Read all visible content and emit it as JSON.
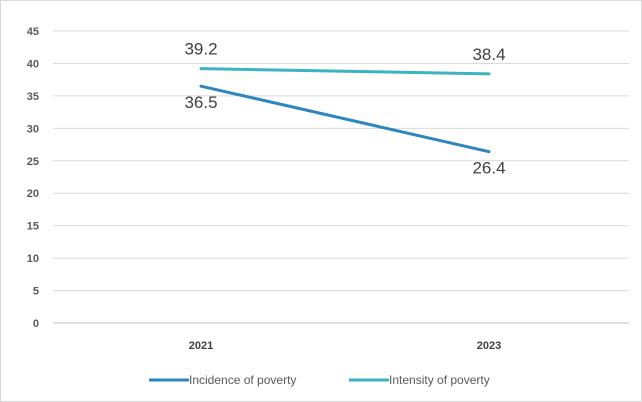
{
  "chart_data": {
    "type": "line",
    "categories": [
      "2021",
      "2023"
    ],
    "series": [
      {
        "name": "Incidence of poverty",
        "values": [
          36.5,
          26.4
        ],
        "color": "#2e86c1"
      },
      {
        "name": "Intensity of poverty",
        "values": [
          39.2,
          38.4
        ],
        "color": "#3bb3c3"
      }
    ],
    "yticks": [
      0,
      5,
      10,
      15,
      20,
      25,
      30,
      35,
      40,
      45
    ],
    "ylim": [
      0,
      45
    ],
    "title": "",
    "xlabel": "",
    "ylabel": "",
    "grid": true,
    "legend": "bottom-center"
  }
}
